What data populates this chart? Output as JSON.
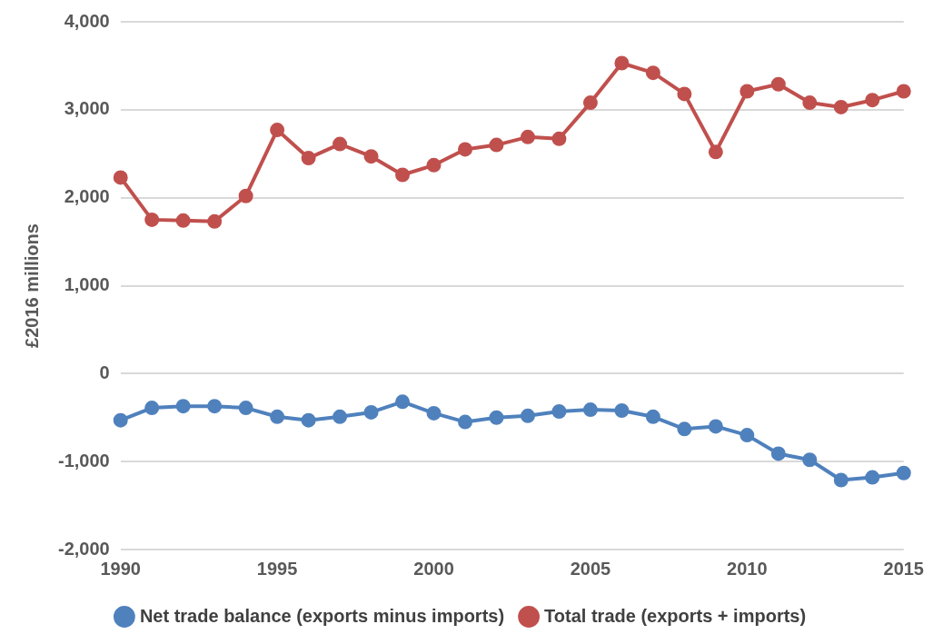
{
  "chart_data": {
    "type": "line",
    "ylabel": "£2016 millions",
    "categories": [
      "1990",
      null,
      null,
      null,
      null,
      "1995",
      null,
      null,
      null,
      null,
      "2000",
      null,
      null,
      null,
      null,
      "2005",
      null,
      null,
      null,
      null,
      "2010",
      null,
      null,
      null,
      null,
      "2015"
    ],
    "series": [
      {
        "name": "Net trade balance (exports minus imports)",
        "color": "#4f81bd",
        "values": [
          -530,
          -390,
          -370,
          -370,
          -390,
          -490,
          -530,
          -490,
          -440,
          -320,
          -450,
          -550,
          -500,
          -480,
          -430,
          -410,
          -420,
          -490,
          -630,
          -600,
          -700,
          -910,
          -980,
          -1210,
          -1180,
          -1130
        ]
      },
      {
        "name": "Total trade (exports + imports)",
        "color": "#c0504d",
        "values": [
          2230,
          1750,
          1740,
          1730,
          2020,
          2770,
          2450,
          2610,
          2470,
          2260,
          2370,
          2550,
          2600,
          2690,
          2670,
          3080,
          3530,
          3420,
          3180,
          2520,
          3210,
          3290,
          3080,
          3030,
          3110,
          3210
        ]
      }
    ],
    "ylim": [
      -2000,
      4000
    ],
    "yticks": [
      {
        "value": -2000,
        "label": "-2,000"
      },
      {
        "value": -1000,
        "label": "-1,000"
      },
      0,
      {
        "value": 1000,
        "label": "1,000"
      },
      {
        "value": 2000,
        "label": "2,000"
      },
      {
        "value": 3000,
        "label": "3,000"
      },
      {
        "value": 4000,
        "label": "4,000"
      }
    ],
    "grid": "y",
    "legend": "bottom",
    "marker": "circle",
    "line_style": "solid"
  }
}
